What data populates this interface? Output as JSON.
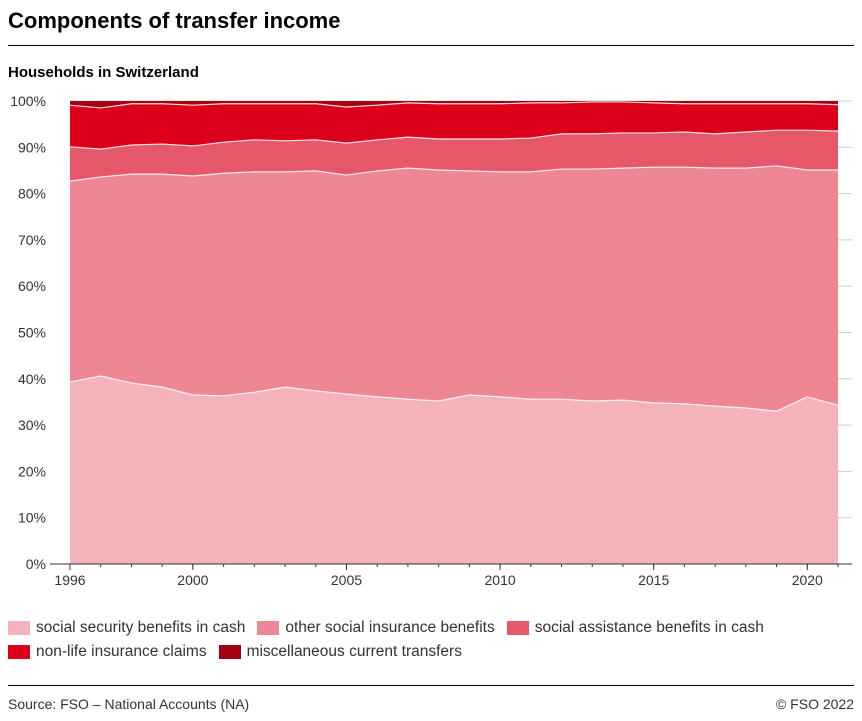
{
  "title": "Components of transfer income",
  "subtitle": "Households in Switzerland",
  "source": "Source: FSO – National Accounts (NA)",
  "copyright": "© FSO 2022",
  "chart_data": {
    "type": "area",
    "stacked": true,
    "x": [
      1996,
      1997,
      1998,
      1999,
      2000,
      2001,
      2002,
      2003,
      2004,
      2005,
      2006,
      2007,
      2008,
      2009,
      2010,
      2011,
      2012,
      2013,
      2014,
      2015,
      2016,
      2017,
      2018,
      2019,
      2020,
      2021
    ],
    "series": [
      {
        "name": "social security benefits in cash",
        "color": "#f4b3bb",
        "values": [
          39.3,
          40.6,
          39.1,
          38.2,
          36.5,
          36.3,
          37.1,
          38.2,
          37.4,
          36.7,
          36.1,
          35.6,
          35.2,
          36.5,
          36.1,
          35.6,
          35.6,
          35.2,
          35.4,
          34.8,
          34.6,
          34.1,
          33.7,
          33.0,
          36.1,
          34.3
        ]
      },
      {
        "name": "other social insurance benefits",
        "color": "#ee8793",
        "values": [
          43.4,
          43.0,
          45.1,
          46.0,
          47.3,
          48.1,
          47.6,
          46.5,
          47.5,
          47.3,
          48.8,
          49.9,
          49.9,
          48.4,
          48.6,
          49.1,
          49.7,
          50.1,
          50.1,
          50.9,
          51.1,
          51.4,
          51.8,
          53.0,
          49.0,
          50.8
        ]
      },
      {
        "name": "social assistance benefits in cash",
        "color": "#e6576a",
        "values": [
          7.4,
          6.0,
          6.3,
          6.5,
          6.5,
          6.7,
          6.9,
          6.7,
          6.7,
          6.9,
          6.7,
          6.7,
          6.7,
          6.9,
          7.1,
          7.3,
          7.6,
          7.6,
          7.6,
          7.4,
          7.6,
          7.4,
          7.8,
          7.7,
          8.6,
          8.4
        ]
      },
      {
        "name": "non-life insurance claims",
        "color": "#dc001a",
        "values": [
          9.0,
          8.9,
          8.9,
          8.7,
          8.8,
          8.3,
          7.8,
          8.0,
          7.8,
          7.8,
          7.5,
          7.4,
          7.6,
          7.6,
          7.6,
          7.6,
          6.7,
          6.9,
          6.7,
          6.5,
          6.1,
          6.5,
          6.1,
          5.7,
          5.7,
          5.7
        ]
      },
      {
        "name": "miscellaneous current transfers",
        "color": "#a50013",
        "values": [
          0.9,
          1.5,
          0.6,
          0.6,
          0.9,
          0.6,
          0.6,
          0.6,
          0.6,
          1.3,
          0.9,
          0.4,
          0.6,
          0.6,
          0.6,
          0.4,
          0.4,
          0.2,
          0.2,
          0.4,
          0.6,
          0.6,
          0.6,
          0.6,
          0.6,
          0.8
        ]
      }
    ],
    "xticks": [
      "1996",
      "2000",
      "2005",
      "2010",
      "2015",
      "2020"
    ],
    "yticks": [
      "0%",
      "10%",
      "20%",
      "30%",
      "40%",
      "50%",
      "60%",
      "70%",
      "80%",
      "90%",
      "100%"
    ],
    "ylim": [
      0,
      100
    ],
    "grid": true,
    "legend": "bottom"
  }
}
